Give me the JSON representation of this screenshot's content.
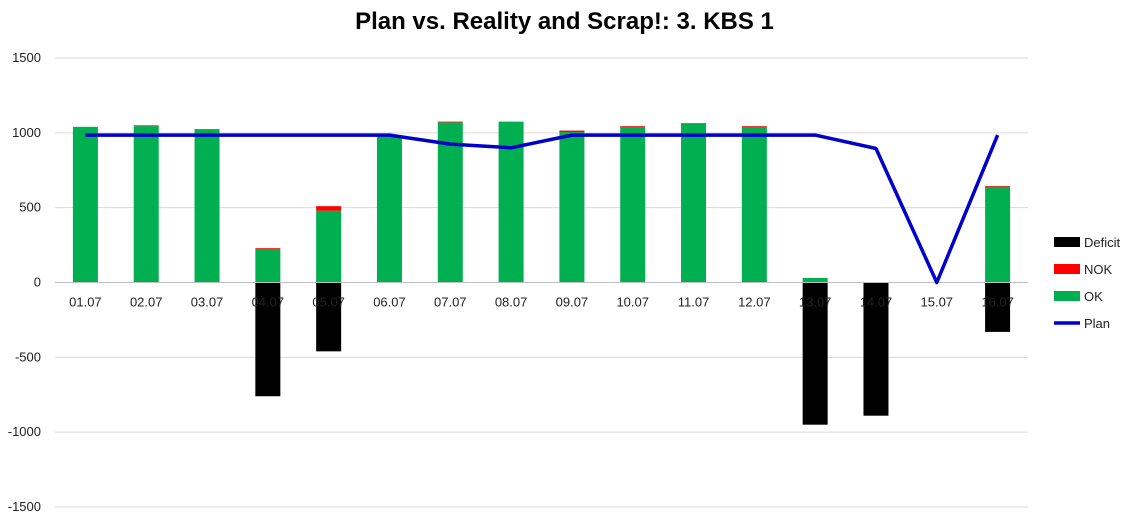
{
  "chart_data": {
    "type": "bar",
    "title": "Plan vs. Reality and Scrap!: 3. KBS 1",
    "categories": [
      "01.07",
      "02.07",
      "03.07",
      "04.07",
      "05.07",
      "06.07",
      "07.07",
      "08.07",
      "09.07",
      "10.07",
      "11.07",
      "12.07",
      "13.07",
      "14.07",
      "15.07",
      "16.07"
    ],
    "ylim": [
      -1500,
      1500
    ],
    "yticks": [
      "1500",
      "1000",
      "500",
      "0",
      "-500",
      "-1000",
      "-1500"
    ],
    "grid": true,
    "legend_position": "right",
    "series": [
      {
        "name": "Deficit",
        "kind": "stacked-bar",
        "color": "#000000",
        "values": [
          0,
          0,
          0,
          -760,
          -460,
          0,
          0,
          0,
          0,
          0,
          0,
          0,
          -950,
          -890,
          0,
          -330
        ]
      },
      {
        "name": "NOK",
        "kind": "stacked-bar",
        "color": "#ff0000",
        "values": [
          0,
          5,
          0,
          5,
          30,
          0,
          5,
          0,
          10,
          5,
          0,
          5,
          0,
          0,
          0,
          5
        ]
      },
      {
        "name": "OK",
        "kind": "stacked-bar",
        "color": "#00b050",
        "values": [
          1040,
          1045,
          1025,
          225,
          480,
          980,
          1070,
          1075,
          1005,
          1040,
          1065,
          1040,
          30,
          0,
          0,
          640
        ]
      },
      {
        "name": "Plan",
        "kind": "line",
        "color": "#0000cc",
        "values": [
          985,
          985,
          985,
          985,
          985,
          985,
          925,
          900,
          985,
          985,
          985,
          985,
          985,
          895,
          0,
          985
        ]
      }
    ]
  }
}
